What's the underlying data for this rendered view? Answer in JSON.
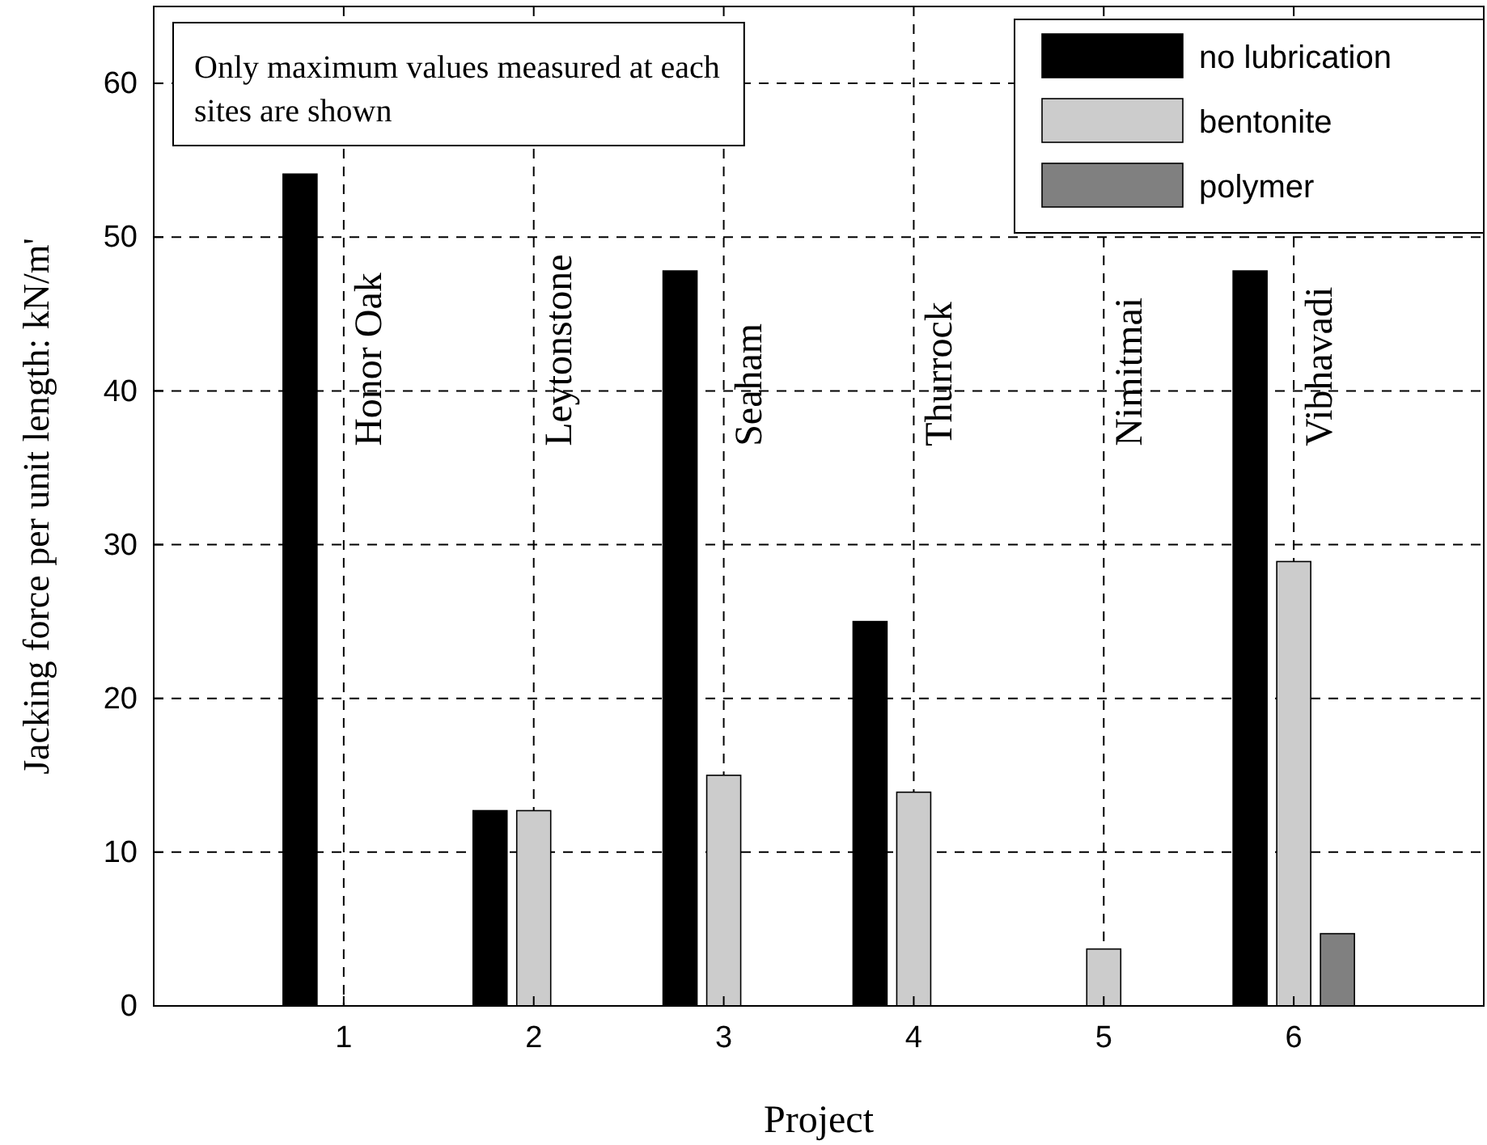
{
  "chart_data": {
    "type": "bar",
    "xlabel": "Project",
    "ylabel": "Jacking force per unit length: kN/m'",
    "categories": [
      "1",
      "2",
      "3",
      "4",
      "5",
      "6"
    ],
    "series": [
      {
        "name": "no lubrication",
        "color": "#000000",
        "values": [
          54.1,
          12.7,
          47.8,
          25.0,
          null,
          47.8
        ]
      },
      {
        "name": "bentonite",
        "color": "#cccccc",
        "values": [
          null,
          12.7,
          15.0,
          13.9,
          3.7,
          28.9
        ]
      },
      {
        "name": "polymer",
        "color": "#808080",
        "values": [
          null,
          null,
          null,
          null,
          null,
          4.7
        ]
      }
    ],
    "ylim": [
      0,
      65
    ],
    "yticks": [
      0,
      10,
      20,
      30,
      40,
      50,
      60
    ],
    "grid": true,
    "legend": "top right",
    "annotations": [
      "Only maximum values measured at each sites are shown",
      "Honor Oak",
      "Leytonstone",
      "Seaham",
      "Thurrock",
      "Nimitmai",
      "Vibhavadi"
    ]
  }
}
